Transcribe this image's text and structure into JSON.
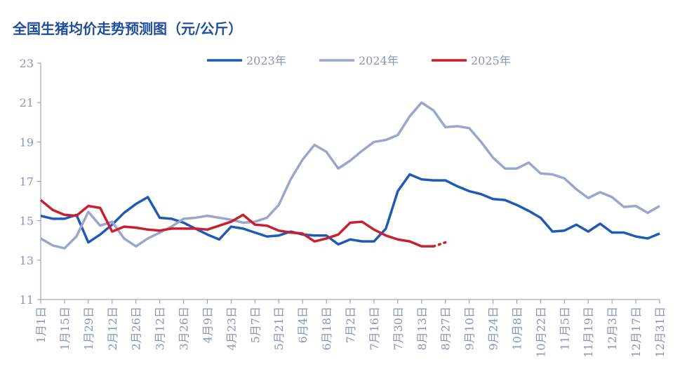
{
  "chart_data": {
    "type": "line",
    "title": "全国生猪均价走势预测图（元/公斤）",
    "categories": [
      "1月1日",
      null,
      "1月15日",
      null,
      "1月29日",
      null,
      "2月12日",
      null,
      "2月26日",
      null,
      "3月12日",
      null,
      "3月26日",
      null,
      "4月9日",
      null,
      "4月23日",
      null,
      "5月7日",
      null,
      "5月21日",
      null,
      "6月4日",
      null,
      "6月18日",
      null,
      "7月2日",
      null,
      "7月16日",
      null,
      "7月30日",
      null,
      "8月13日",
      null,
      "8月27日",
      null,
      "9月10日",
      null,
      "9月24日",
      null,
      "10月8日",
      null,
      "10月22日",
      null,
      "11月5日",
      null,
      "11月19日",
      null,
      "12月3日",
      null,
      "12月17日",
      null,
      "12月31日"
    ],
    "series": [
      {
        "name": "2023年",
        "color": "#1f5bb5",
        "values": [
          15.25,
          15.1,
          15.1,
          15.3,
          13.9,
          14.3,
          14.8,
          15.4,
          15.85,
          16.2,
          15.15,
          15.1,
          14.9,
          14.6,
          14.3,
          14.05,
          14.7,
          14.6,
          14.4,
          14.2,
          14.25,
          14.45,
          14.3,
          14.25,
          14.25,
          13.8,
          14.05,
          13.95,
          13.95,
          14.6,
          16.5,
          17.35,
          17.1,
          17.05,
          17.05,
          16.75,
          16.5,
          16.35,
          16.1,
          16.05,
          15.8,
          15.5,
          15.15,
          14.45,
          14.5,
          14.8,
          14.45,
          14.85,
          14.4,
          14.4,
          14.2,
          14.1,
          14.35
        ]
      },
      {
        "name": "2024年",
        "color": "#9aa6cc",
        "values": [
          14.1,
          13.75,
          13.6,
          14.2,
          15.45,
          14.75,
          14.95,
          14.1,
          13.7,
          14.1,
          14.4,
          14.7,
          15.1,
          15.15,
          15.25,
          15.15,
          15.05,
          14.9,
          14.95,
          15.15,
          15.8,
          17.1,
          18.1,
          18.85,
          18.5,
          17.65,
          18.05,
          18.55,
          19.0,
          19.1,
          19.35,
          20.3,
          21.0,
          20.6,
          19.75,
          19.8,
          19.7,
          19.0,
          18.2,
          17.65,
          17.65,
          17.95,
          17.4,
          17.35,
          17.15,
          16.6,
          16.15,
          16.45,
          16.2,
          15.7,
          15.75,
          15.4,
          15.75
        ]
      },
      {
        "name": "2025年",
        "color": "#c8202f",
        "dashed_from": 33,
        "values": [
          16.05,
          15.55,
          15.3,
          15.25,
          15.75,
          15.65,
          14.45,
          14.7,
          14.65,
          14.55,
          14.5,
          14.6,
          14.6,
          14.6,
          14.55,
          14.75,
          14.95,
          15.3,
          14.8,
          14.75,
          14.5,
          14.4,
          14.35,
          13.95,
          14.1,
          14.3,
          14.9,
          14.95,
          14.55,
          14.25,
          14.05,
          13.95,
          13.7,
          13.7,
          13.9,
          null,
          null,
          null,
          null,
          null,
          null,
          null,
          null,
          null,
          null,
          null,
          null,
          null,
          null,
          null,
          null,
          null,
          null
        ]
      }
    ],
    "ylim": [
      11,
      23
    ],
    "yticks": [
      11,
      13,
      15,
      17,
      19,
      21,
      23
    ],
    "grid": false
  }
}
